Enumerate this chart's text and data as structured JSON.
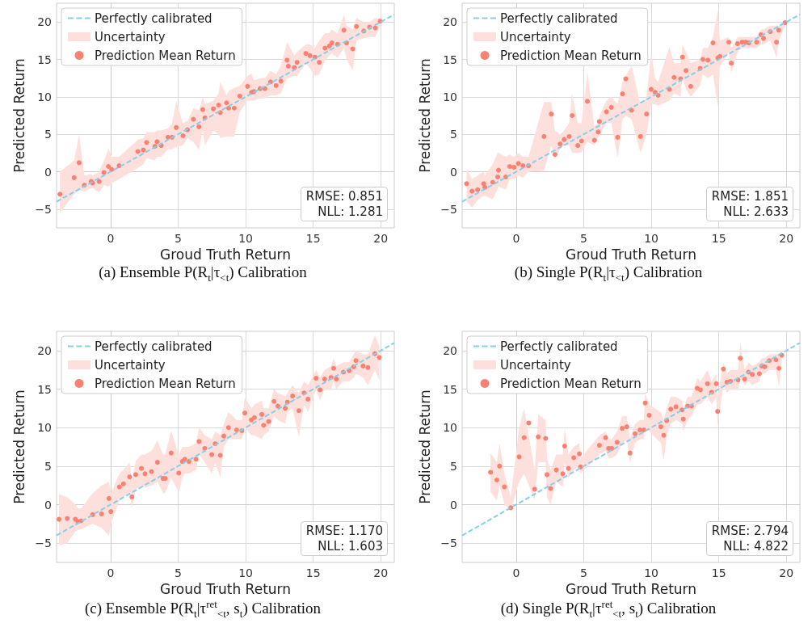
{
  "chart_data": [
    {
      "type": "scatter",
      "title": "(a) Ensemble P(R$_{t}$|τ$_{<t}$) Calibration",
      "xlabel": "Groud Truth Return",
      "ylabel": "Predicted Return",
      "xlim": [
        -4,
        21
      ],
      "ylim": [
        -7.5,
        22.5
      ],
      "xticks": [
        0,
        5,
        10,
        15,
        20
      ],
      "yticks": [
        -5,
        0,
        5,
        10,
        15,
        20
      ],
      "grid": true,
      "legend": "top left",
      "annotations": [
        "RMSE: 0.851\nNLL: 1.281"
      ],
      "series": [
        {
          "name": "Perfectly calibrated",
          "type": "line",
          "line_style": "dashed",
          "color": "#87ceeb",
          "x": [
            -4,
            21
          ],
          "values": [
            -4,
            21
          ]
        },
        {
          "name": "Uncertainty",
          "type": "area",
          "color": "#fde0dc"
        },
        {
          "name": "Prediction Mean Return",
          "marker": "circle",
          "color": "#fa8072",
          "x": [
            -3.75,
            -2.7,
            -2.33,
            -1.94,
            -1.44,
            -1.34,
            -0.85,
            -0.49,
            -0.16,
            0.08,
            0.63,
            2.02,
            2.43,
            2.67,
            3.28,
            3.44,
            3.75,
            4.25,
            4.55,
            4.86,
            5.36,
            5.69,
            6.13,
            6.54,
            6.82,
            6.98,
            7.61,
            8.0,
            8.12,
            8.58,
            8.74,
            9.15,
            9.57,
            10.14,
            10.43,
            10.61,
            11.07,
            11.42,
            11.84,
            12.25,
            12.61,
            13.06,
            13.16,
            13.6,
            13.8,
            14.45,
            14.76,
            15.12,
            15.45,
            15.87,
            16.2,
            16.38,
            16.8,
            17.27,
            17.47,
            17.92,
            18.2,
            18.74,
            19.17,
            19.6,
            19.96
          ],
          "values": [
            -3.0,
            -0.8,
            1.2,
            -1.8,
            -1.3,
            -1.5,
            -1.3,
            -0.1,
            0.7,
            0.3,
            0.8,
            2.7,
            2.9,
            3.9,
            3.4,
            4.0,
            3.5,
            4.6,
            4.6,
            5.9,
            4.8,
            5.6,
            7.0,
            6.0,
            8.3,
            7.2,
            8.4,
            8.9,
            7.9,
            9.2,
            8.5,
            8.5,
            10.1,
            11.4,
            10.6,
            10.7,
            11.1,
            11.1,
            12.0,
            11.5,
            12.1,
            14.9,
            14.1,
            13.9,
            14.6,
            15.8,
            15.5,
            15.3,
            14.6,
            16.5,
            16.8,
            17.2,
            17.0,
            18.9,
            17.2,
            16.4,
            19.4,
            18.8,
            19.3,
            19.2,
            20.1
          ],
          "lower": [
            -5.5,
            -3.0,
            -2.5,
            -2.6,
            -2.2,
            -2.2,
            -2.8,
            -1.8,
            -2.0,
            -1.5,
            -1.0,
            0.5,
            1.0,
            1.8,
            1.5,
            2.0,
            2.0,
            3.0,
            3.0,
            3.3,
            3.5,
            4.5,
            4.0,
            2.9,
            5.5,
            3.5,
            5.5,
            5.0,
            4.5,
            4.7,
            4.7,
            4.7,
            8.0,
            9.5,
            9.5,
            9.5,
            9.8,
            9.8,
            10.2,
            10.2,
            10.5,
            12.5,
            12.5,
            12.8,
            12.8,
            14.5,
            13.8,
            12.8,
            13.0,
            14.8,
            15.5,
            15.8,
            15.2,
            16.5,
            15.0,
            13.5,
            17.5,
            17.8,
            18.0,
            18.0,
            19.5
          ],
          "upper": [
            0.0,
            1.5,
            5.0,
            -0.5,
            -0.3,
            -0.5,
            0.0,
            1.5,
            3.1,
            2.0,
            2.0,
            4.3,
            4.5,
            5.3,
            5.3,
            5.5,
            5.5,
            5.8,
            6.5,
            9.4,
            6.5,
            6.8,
            8.5,
            8.2,
            10.0,
            9.0,
            9.5,
            10.5,
            12.0,
            10.2,
            10.8,
            11.2,
            11.5,
            12.8,
            13.1,
            12.2,
            12.5,
            12.5,
            13.5,
            13.0,
            14.2,
            17.3,
            17.0,
            15.5,
            16.0,
            17.0,
            17.0,
            16.5,
            17.5,
            18.5,
            18.5,
            19.0,
            18.5,
            21.0,
            19.5,
            19.0,
            20.5,
            20.0,
            20.0,
            20.5,
            20.5
          ]
        }
      ]
    },
    {
      "type": "scatter",
      "title": "(b) Single P(R$_{t}$|τ$_{<t}$) Calibration",
      "xlabel": "Groud Truth Return",
      "ylabel": "Predicted Return",
      "xlim": [
        -4,
        21
      ],
      "ylim": [
        -7.5,
        22.5
      ],
      "xticks": [
        0,
        5,
        10,
        15,
        20
      ],
      "yticks": [
        -5,
        0,
        5,
        10,
        15,
        20
      ],
      "grid": true,
      "legend": "top left",
      "annotations": [
        "RMSE: 1.851\nNLL: 2.633"
      ],
      "series": [
        {
          "name": "Perfectly calibrated",
          "type": "line",
          "line_style": "dashed",
          "color": "#87ceeb",
          "x": [
            -4,
            21
          ],
          "values": [
            -4,
            21
          ]
        },
        {
          "name": "Uncertainty",
          "type": "area",
          "color": "#fde0dc"
        },
        {
          "name": "Prediction Mean Return",
          "marker": "circle",
          "color": "#fa8072",
          "x": [
            -3.67,
            -3.27,
            -2.85,
            -2.4,
            -2.32,
            -1.74,
            -1.37,
            -1.31,
            -0.77,
            -0.48,
            -0.16,
            0.16,
            0.5,
            0.91,
            2.06,
            2.6,
            2.87,
            3.25,
            3.55,
            3.92,
            4.14,
            4.56,
            4.84,
            5.27,
            5.79,
            6.07,
            6.16,
            6.68,
            7.04,
            7.51,
            7.87,
            8.11,
            8.54,
            9.2,
            9.65,
            9.99,
            10.29,
            10.51,
            11.34,
            11.69,
            12.17,
            12.31,
            12.57,
            12.92,
            13.62,
            13.82,
            14.19,
            14.57,
            14.93,
            15.08,
            15.74,
            15.92,
            16.39,
            16.73,
            16.99,
            17.22,
            17.8,
            18.12,
            18.31,
            18.81,
            19.27,
            19.43,
            19.9
          ],
          "values": [
            -1.6,
            -2.6,
            -2.4,
            -1.6,
            -2.1,
            -1.4,
            -0.7,
            0.2,
            -0.7,
            0.7,
            0.6,
            1.1,
            0.8,
            0.8,
            4.7,
            7.7,
            2.3,
            3.7,
            4.3,
            4.7,
            7.5,
            3.5,
            4.1,
            9.4,
            4.2,
            5.3,
            6.7,
            8.0,
            8.6,
            4.6,
            10.4,
            12.4,
            8.2,
            4.7,
            7.7,
            11.0,
            10.6,
            10.2,
            11.0,
            12.6,
            12.4,
            15.3,
            13.5,
            11.4,
            13.8,
            15.0,
            14.9,
            17.2,
            15.2,
            15.4,
            17.3,
            14.5,
            17.1,
            17.3,
            17.3,
            17.2,
            17.3,
            18.3,
            17.8,
            18.7,
            17.3,
            18.9,
            19.9
          ],
          "lower": [
            -4.0,
            -4.8,
            -3.8,
            -3.2,
            -3.2,
            -3.7,
            -2.3,
            -2.0,
            -2.4,
            -1.0,
            -1.0,
            -0.5,
            -0.8,
            0.0,
            0.1,
            3.5,
            1.8,
            3.0,
            3.5,
            3.5,
            2.5,
            2.5,
            2.6,
            4.0,
            3.5,
            4.5,
            4.8,
            6.5,
            6.5,
            1.8,
            7.0,
            7.5,
            7.0,
            2.5,
            5.0,
            9.0,
            9.0,
            8.8,
            9.5,
            10.5,
            10.0,
            12.5,
            11.0,
            10.0,
            11.5,
            13.0,
            12.5,
            13.0,
            8.6,
            14.0,
            16.0,
            13.1,
            16.0,
            16.5,
            16.5,
            16.5,
            16.5,
            17.0,
            17.0,
            17.5,
            15.2,
            17.5,
            19.5
          ],
          "upper": [
            0.5,
            -1.0,
            -0.5,
            0.0,
            -0.5,
            1.0,
            2.5,
            2.5,
            2.0,
            2.3,
            2.0,
            2.5,
            2.0,
            2.0,
            9.3,
            9.3,
            5.5,
            5.0,
            5.5,
            6.5,
            10.5,
            6.5,
            6.5,
            13.3,
            6.0,
            6.5,
            7.5,
            9.5,
            10.0,
            9.0,
            12.0,
            12.8,
            14.2,
            9.0,
            10.0,
            15.9,
            12.5,
            12.0,
            16.7,
            14.5,
            14.5,
            17.0,
            16.0,
            14.5,
            15.0,
            16.5,
            16.5,
            18.0,
            21.6,
            17.5,
            18.0,
            16.5,
            18.0,
            18.0,
            18.0,
            18.0,
            18.0,
            19.0,
            19.0,
            19.5,
            19.5,
            19.5,
            20.3
          ]
        }
      ]
    },
    {
      "type": "scatter",
      "title": "(c) Ensemble P(R$_{t}$|τ$^{ret}$$_{<t}$, s$_{t}$) Calibration",
      "xlabel": "Groud Truth Return",
      "ylabel": "Predicted Return",
      "xlim": [
        -4,
        21
      ],
      "ylim": [
        -7.5,
        22.5
      ],
      "xticks": [
        0,
        5,
        10,
        15,
        20
      ],
      "yticks": [
        -5,
        0,
        5,
        10,
        15,
        20
      ],
      "grid": true,
      "legend": "top left",
      "annotations": [
        "RMSE: 1.170\nNLL: 1.603"
      ],
      "series": [
        {
          "name": "Perfectly calibrated",
          "type": "line",
          "line_style": "dashed",
          "color": "#87ceeb",
          "x": [
            -4,
            21
          ],
          "values": [
            -4,
            21
          ]
        },
        {
          "name": "Uncertainty",
          "type": "area",
          "color": "#fde0dc"
        },
        {
          "name": "Prediction Mean Return",
          "marker": "circle",
          "color": "#fa8072",
          "x": [
            -3.82,
            -3.21,
            -2.61,
            -2.42,
            -2.18,
            -1.33,
            -0.67,
            -0.12,
            0.02,
            0.65,
            0.95,
            1.41,
            1.58,
            1.86,
            2.28,
            2.55,
            3.03,
            3.47,
            3.88,
            4.04,
            4.48,
            5.05,
            5.31,
            5.49,
            5.8,
            6.32,
            6.55,
            6.97,
            7.49,
            7.74,
            8.12,
            8.38,
            8.73,
            9.33,
            9.72,
            9.94,
            10.42,
            10.65,
            11.19,
            11.33,
            11.7,
            12.1,
            12.38,
            12.93,
            13.09,
            13.47,
            13.94,
            14.32,
            14.61,
            15.21,
            15.5,
            15.84,
            16.32,
            16.51,
            16.71,
            17.23,
            17.66,
            18.0,
            18.16,
            18.69,
            19.05,
            19.56,
            19.9
          ],
          "values": [
            -1.9,
            -1.8,
            -1.9,
            -2.2,
            -2.1,
            -1.3,
            -1.2,
            0.8,
            -0.9,
            2.3,
            2.7,
            3.6,
            1.0,
            3.9,
            4.7,
            4.0,
            4.3,
            5.5,
            3.4,
            3.4,
            6.7,
            4.1,
            5.6,
            5.9,
            5.6,
            5.9,
            8.2,
            7.3,
            6.5,
            7.9,
            6.4,
            8.9,
            10.0,
            9.7,
            9.6,
            11.9,
            11.0,
            11.3,
            11.7,
            10.3,
            10.8,
            13.4,
            12.8,
            12.5,
            13.3,
            14.1,
            12.2,
            14.5,
            13.7,
            16.4,
            14.9,
            16.3,
            16.5,
            17.7,
            16.3,
            17.2,
            17.4,
            17.9,
            18.7,
            18.0,
            17.8,
            19.6,
            19.1
          ],
          "lower": [
            -5.3,
            -5.0,
            -3.5,
            -3.3,
            -3.2,
            -2.5,
            -3.0,
            -4.0,
            -2.5,
            0.5,
            1.0,
            1.5,
            -0.5,
            2.0,
            2.5,
            2.2,
            2.5,
            3.0,
            1.5,
            1.5,
            3.5,
            1.6,
            3.5,
            4.0,
            4.0,
            4.5,
            6.5,
            5.5,
            4.0,
            5.5,
            3.5,
            7.5,
            8.5,
            8.5,
            8.5,
            10.0,
            9.0,
            9.0,
            8.5,
            9.0,
            9.5,
            11.5,
            11.0,
            10.5,
            12.0,
            12.5,
            8.8,
            13.0,
            12.0,
            15.0,
            13.5,
            15.0,
            15.0,
            16.0,
            15.0,
            16.0,
            16.0,
            16.5,
            17.0,
            16.5,
            15.5,
            17.5,
            16.1
          ],
          "upper": [
            1.4,
            1.0,
            0.0,
            -0.5,
            -0.5,
            1.5,
            2.5,
            3.0,
            1.5,
            4.0,
            4.5,
            5.5,
            3.0,
            5.7,
            6.5,
            6.5,
            7.0,
            8.3,
            6.5,
            6.5,
            9.6,
            6.5,
            7.5,
            7.5,
            7.5,
            8.0,
            10.0,
            9.0,
            8.5,
            9.5,
            9.0,
            10.5,
            12.0,
            11.0,
            11.0,
            13.9,
            12.5,
            13.0,
            13.5,
            12.5,
            12.5,
            15.0,
            14.5,
            14.0,
            14.5,
            15.5,
            14.5,
            16.0,
            15.5,
            17.5,
            16.5,
            17.5,
            18.0,
            19.0,
            18.0,
            18.5,
            18.5,
            19.5,
            20.0,
            19.5,
            19.5,
            22.0,
            20.5
          ]
        }
      ]
    },
    {
      "type": "scatter",
      "title": "(d) Single P(R$_{t}$|τ$^{ret}$$_{<t}$, s$_{t}$) Calibration",
      "xlabel": "Groud Truth Return",
      "ylabel": "Predicted Return",
      "xlim": [
        -4,
        21
      ],
      "ylim": [
        -7.5,
        22.5
      ],
      "xticks": [
        0,
        5,
        10,
        15,
        20
      ],
      "yticks": [
        -5,
        0,
        5,
        10,
        15,
        20
      ],
      "grid": true,
      "legend": "top left",
      "annotations": [
        "RMSE: 2.794\nNLL: 4.822"
      ],
      "series": [
        {
          "name": "Perfectly calibrated",
          "type": "line",
          "line_style": "dashed",
          "color": "#87ceeb",
          "x": [
            -4,
            21
          ],
          "values": [
            -4,
            21
          ]
        },
        {
          "name": "Uncertainty",
          "type": "area",
          "color": "#fde0dc"
        },
        {
          "name": "Prediction Mean Return",
          "marker": "circle",
          "color": "#fa8072",
          "x": [
            -1.9,
            -1.43,
            -1.23,
            -0.87,
            -0.4,
            0.22,
            0.59,
            0.93,
            1.37,
            1.63,
            2.18,
            2.28,
            2.54,
            2.97,
            3.45,
            3.59,
            3.87,
            4.26,
            4.68,
            4.76,
            6.16,
            6.62,
            6.84,
            7.07,
            7.47,
            7.85,
            8.19,
            8.42,
            8.8,
            9.16,
            9.45,
            9.55,
            9.85,
            10.71,
            10.92,
            11.14,
            11.44,
            11.83,
            12.27,
            12.37,
            12.69,
            12.98,
            13.4,
            13.64,
            14.16,
            14.47,
            14.81,
            14.91,
            15.34,
            15.6,
            15.86,
            16.43,
            16.59,
            16.91,
            17.2,
            17.48,
            18.0,
            18.18,
            18.4,
            18.73,
            19.23,
            19.45,
            19.66
          ],
          "values": [
            4.2,
            3.2,
            5.0,
            2.3,
            -0.4,
            6.2,
            8.7,
            10.6,
            2.0,
            8.8,
            8.6,
            3.9,
            2.1,
            4.5,
            4.0,
            7.6,
            4.7,
            6.1,
            6.6,
            4.9,
            7.7,
            8.7,
            7.3,
            7.3,
            8.1,
            9.9,
            10.1,
            6.7,
            9.2,
            9.7,
            9.7,
            13.2,
            11.6,
            10.1,
            9.0,
            10.9,
            12.4,
            12.7,
            12.3,
            11.1,
            12.8,
            12.8,
            15.1,
            14.9,
            15.7,
            14.6,
            15.7,
            12.1,
            17.6,
            15.9,
            16.0,
            16.2,
            19.0,
            16.3,
            17.2,
            16.9,
            17.0,
            18.0,
            17.9,
            18.7,
            18.8,
            17.7,
            19.4
          ],
          "lower": [
            1.7,
            0.5,
            2.5,
            0.0,
            -0.8,
            3.0,
            4.0,
            null,
            0.6,
            5.5,
            5.5,
            1.0,
            0.0,
            3.0,
            2.3,
            5.5,
            3.5,
            4.5,
            5.0,
            4.0,
            6.5,
            7.0,
            6.0,
            6.0,
            6.5,
            8.0,
            8.5,
            5.4,
            8.0,
            8.5,
            8.5,
            10.0,
            9.5,
            8.0,
            5.7,
            9.0,
            10.5,
            11.0,
            10.5,
            9.5,
            11.0,
            11.5,
            13.0,
            13.0,
            14.0,
            13.0,
            14.0,
            10.1,
            15.5,
            14.5,
            15.0,
            15.0,
            16.5,
            15.5,
            16.0,
            15.5,
            16.0,
            17.0,
            17.0,
            17.5,
            17.5,
            15.3,
            18.5
          ],
          "upper": [
            6.7,
            5.5,
            8.0,
            4.0,
            1.0,
            10.0,
            12.5,
            null,
            4.5,
            11.7,
            11.0,
            6.0,
            4.5,
            6.5,
            6.5,
            10.0,
            6.5,
            7.5,
            8.0,
            6.0,
            9.0,
            9.5,
            8.5,
            8.5,
            9.5,
            11.5,
            11.5,
            8.5,
            10.5,
            11.0,
            11.0,
            14.5,
            13.0,
            12.0,
            11.0,
            12.5,
            14.0,
            14.0,
            13.5,
            12.5,
            14.0,
            14.0,
            16.5,
            16.0,
            17.5,
            16.0,
            17.0,
            14.0,
            18.5,
            17.0,
            17.5,
            17.5,
            20.9,
            17.5,
            18.5,
            18.0,
            18.5,
            19.0,
            19.0,
            19.5,
            19.5,
            19.5,
            20.0
          ]
        }
      ]
    }
  ]
}
